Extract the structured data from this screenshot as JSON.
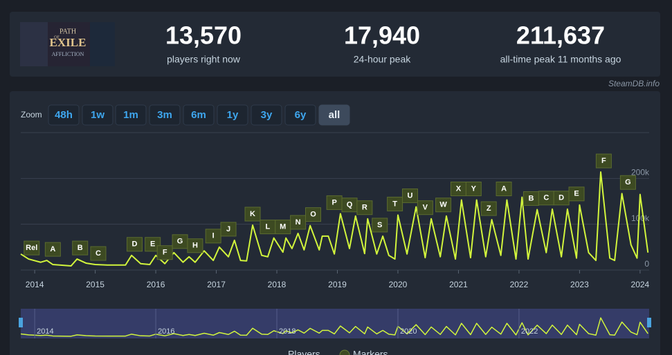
{
  "header": {
    "logo": [
      "PATH",
      "OF",
      "EXILE",
      "AFFLICTION"
    ],
    "stats": [
      {
        "value": "13,570",
        "label": "players right now"
      },
      {
        "value": "17,940",
        "label": "24-hour peak"
      },
      {
        "value": "211,637",
        "label": "all-time peak 11 months ago"
      }
    ],
    "credit": "SteamDB.info"
  },
  "zoom": {
    "label": "Zoom",
    "buttons": [
      "48h",
      "1w",
      "1m",
      "3m",
      "6m",
      "1y",
      "3y",
      "6y",
      "all"
    ],
    "active": "all"
  },
  "chart_data": {
    "type": "line",
    "x": [
      2013.77,
      2013.9,
      2014.1,
      2014.2,
      2014.3,
      2014.6,
      2014.7,
      2014.85,
      2015.0,
      2015.2,
      2015.5,
      2015.6,
      2015.75,
      2015.9,
      2016.0,
      2016.15,
      2016.3,
      2016.45,
      2016.55,
      2016.65,
      2016.8,
      2016.95,
      2017.05,
      2017.2,
      2017.3,
      2017.4,
      2017.5,
      2017.6,
      2017.75,
      2017.85,
      2017.95,
      2018.1,
      2018.15,
      2018.25,
      2018.35,
      2018.45,
      2018.55,
      2018.7,
      2018.75,
      2018.85,
      2018.95,
      2019.05,
      2019.2,
      2019.3,
      2019.45,
      2019.5,
      2019.65,
      2019.75,
      2019.85,
      2019.95,
      2020.0,
      2020.15,
      2020.3,
      2020.45,
      2020.55,
      2020.7,
      2020.8,
      2020.95,
      2021.05,
      2021.2,
      2021.3,
      2021.45,
      2021.55,
      2021.7,
      2021.8,
      2021.95,
      2022.05,
      2022.15,
      2022.3,
      2022.45,
      2022.55,
      2022.7,
      2022.8,
      2022.95,
      2023.0,
      2023.15,
      2023.27,
      2023.35,
      2023.5,
      2023.58,
      2023.7,
      2023.85,
      2023.95,
      2024.0,
      2024.13
    ],
    "series": [
      {
        "name": "Players",
        "color": "#d2f53c",
        "values": [
          35000,
          24000,
          17000,
          21000,
          12000,
          9000,
          24000,
          15000,
          12000,
          11000,
          11000,
          32000,
          14000,
          12000,
          32000,
          14000,
          38000,
          17000,
          29000,
          17000,
          42000,
          21000,
          50000,
          29000,
          65000,
          21000,
          20000,
          98000,
          32000,
          29000,
          70000,
          39000,
          70000,
          47000,
          80000,
          44000,
          97000,
          44000,
          74000,
          74000,
          35000,
          123000,
          47000,
          118000,
          36000,
          112000,
          35000,
          74000,
          32000,
          24000,
          120000,
          35000,
          138000,
          27000,
          112000,
          29000,
          118000,
          24000,
          153000,
          27000,
          153000,
          29000,
          110000,
          32000,
          153000,
          24000,
          159000,
          24000,
          132000,
          38000,
          133000,
          29000,
          133000,
          26000,
          142000,
          38000,
          21000,
          214000,
          26000,
          21000,
          167000,
          55000,
          26000,
          165000,
          38000
        ]
      }
    ],
    "markers": {
      "name": "Markers",
      "color": "#3d4a22",
      "labels": [
        "Rel",
        "A",
        "B",
        "C",
        "D",
        "E",
        "F",
        "G",
        "H",
        "I",
        "J",
        "K",
        "L",
        "M",
        "N",
        "O",
        "P",
        "Q",
        "R",
        "S",
        "T",
        "U",
        "V",
        "W",
        "X",
        "Y",
        "Z",
        "A",
        "B",
        "C",
        "D",
        "E",
        "F",
        "G"
      ],
      "x": [
        2013.95,
        2014.3,
        2014.75,
        2015.05,
        2015.65,
        2015.95,
        2016.15,
        2016.4,
        2016.65,
        2016.95,
        2017.2,
        2017.6,
        2017.85,
        2018.1,
        2018.35,
        2018.6,
        2018.95,
        2019.2,
        2019.45,
        2019.7,
        2019.95,
        2020.2,
        2020.45,
        2020.75,
        2021.0,
        2021.25,
        2021.5,
        2021.75,
        2022.2,
        2022.45,
        2022.7,
        2022.95,
        2023.4,
        2023.8
      ]
    },
    "xlim": [
      2013.77,
      2024.15
    ],
    "xticks": [
      2014,
      2015,
      2016,
      2017,
      2018,
      2019,
      2020,
      2021,
      2022,
      2023,
      2024
    ],
    "ylim": [
      0,
      300000
    ],
    "yticks": [
      0,
      {
        "value": 100000,
        "label": "100k"
      },
      {
        "value": 200000,
        "label": "200k"
      }
    ],
    "grid": true,
    "navigator_xticks": [
      2014,
      2016,
      2018,
      2020,
      2022
    ]
  }
}
